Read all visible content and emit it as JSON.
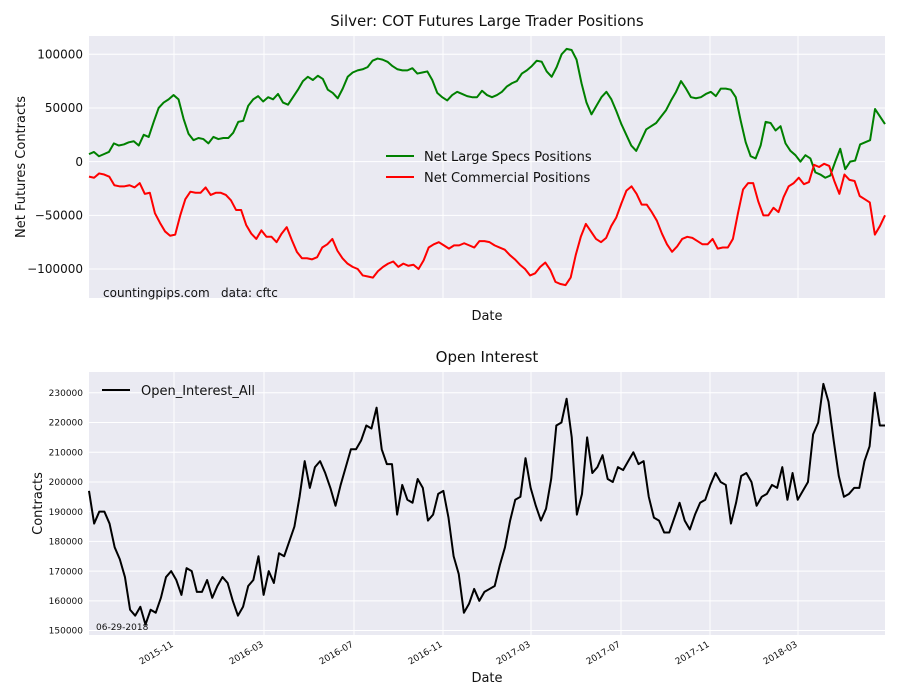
{
  "chart_data": [
    {
      "type": "line",
      "title": "Silver: COT Futures Large Trader Positions",
      "xlabel": "Date",
      "ylabel": "Net Futures Contracts",
      "ylim": [
        -127000,
        117000
      ],
      "yticks": [
        100000,
        50000,
        0,
        -50000,
        -100000
      ],
      "ytick_labels": [
        "100000",
        "50000",
        "0",
        "−50000",
        "−100000"
      ],
      "grid": true,
      "legend": "center",
      "annotations": [
        "countingpips.com",
        "data: cftc"
      ],
      "series": [
        {
          "name": "Net Large Specs Positions",
          "color": "#008000",
          "values": [
            7000,
            9000,
            5000,
            7000,
            9000,
            17000,
            15000,
            16000,
            18000,
            19000,
            15000,
            25000,
            23000,
            37000,
            50000,
            55000,
            58000,
            62000,
            58000,
            40000,
            26000,
            20000,
            22000,
            21000,
            17000,
            23000,
            21000,
            22000,
            22000,
            27000,
            37000,
            38000,
            52000,
            58000,
            61000,
            56000,
            60000,
            58000,
            63000,
            55000,
            53000,
            60000,
            67000,
            75000,
            79000,
            76000,
            80000,
            77000,
            67000,
            64000,
            59000,
            68000,
            79000,
            83000,
            85000,
            86000,
            88000,
            94000,
            96000,
            95000,
            93000,
            89000,
            86000,
            85000,
            85000,
            87000,
            82000,
            83000,
            84000,
            76000,
            64000,
            60000,
            57000,
            62000,
            65000,
            63000,
            61000,
            60000,
            60000,
            66000,
            62000,
            60000,
            62000,
            65000,
            70000,
            73000,
            75000,
            82000,
            85000,
            89000,
            94000,
            93000,
            84000,
            79000,
            88000,
            100000,
            105000,
            104000,
            95000,
            73000,
            55000,
            44000,
            52000,
            60000,
            65000,
            58000,
            47000,
            35000,
            25000,
            15000,
            10000,
            20000,
            30000,
            33000,
            36000,
            42000,
            48000,
            57000,
            65000,
            75000,
            68000,
            60000,
            59000,
            60000,
            63000,
            65000,
            61000,
            68000,
            68000,
            67000,
            60000,
            38000,
            18000,
            5000,
            3000,
            15000,
            37000,
            36000,
            29000,
            33000,
            17000,
            10000,
            6000,
            0,
            6000,
            3000,
            -10000,
            -12000,
            -15000,
            -13000,
            0,
            12000,
            -7000,
            0,
            1000,
            16000,
            18000,
            20000,
            49000,
            42000,
            35000
          ]
        },
        {
          "name": "Net Commercial Positions",
          "color": "#ff0000",
          "values": [
            -14000,
            -15000,
            -11000,
            -12000,
            -14000,
            -22000,
            -23000,
            -23000,
            -22000,
            -24000,
            -20000,
            -30000,
            -29000,
            -48000,
            -57000,
            -65000,
            -69000,
            -68000,
            -50000,
            -35000,
            -28000,
            -29000,
            -29000,
            -24000,
            -31000,
            -29000,
            -29000,
            -31000,
            -36000,
            -45000,
            -45000,
            -59000,
            -67000,
            -72000,
            -64000,
            -70000,
            -70000,
            -75000,
            -67000,
            -61000,
            -73000,
            -84000,
            -90000,
            -90000,
            -91000,
            -89000,
            -80000,
            -77000,
            -72000,
            -83000,
            -90000,
            -95000,
            -98000,
            -100000,
            -106000,
            -107000,
            -108000,
            -102000,
            -98000,
            -95000,
            -93000,
            -98000,
            -95000,
            -97000,
            -96000,
            -100000,
            -92000,
            -80000,
            -77000,
            -75000,
            -78000,
            -81000,
            -78000,
            -78000,
            -76000,
            -78000,
            -80000,
            -74000,
            -74000,
            -75000,
            -78000,
            -80000,
            -82000,
            -87000,
            -91000,
            -96000,
            -100000,
            -106000,
            -104000,
            -98000,
            -94000,
            -101000,
            -112000,
            -114000,
            -115000,
            -108000,
            -87000,
            -70000,
            -58000,
            -65000,
            -72000,
            -75000,
            -71000,
            -60000,
            -52000,
            -39000,
            -27000,
            -23000,
            -30000,
            -40000,
            -40000,
            -47000,
            -55000,
            -67000,
            -77000,
            -84000,
            -79000,
            -72000,
            -70000,
            -71000,
            -74000,
            -77000,
            -77000,
            -72000,
            -81000,
            -80000,
            -80000,
            -72000,
            -48000,
            -26000,
            -20000,
            -20000,
            -37000,
            -50000,
            -50000,
            -43000,
            -47000,
            -33000,
            -23000,
            -20000,
            -15000,
            -21000,
            -19000,
            -3000,
            -5000,
            -2000,
            -4000,
            -18000,
            -30000,
            -12000,
            -17000,
            -18000,
            -32000,
            -35000,
            -38000,
            -68000,
            -60000,
            -50000
          ]
        }
      ]
    },
    {
      "type": "line",
      "title": "Open Interest",
      "xlabel": "Date",
      "ylabel": "Contracts",
      "ylim": [
        148500,
        237000
      ],
      "yticks": [
        150000,
        160000,
        170000,
        180000,
        190000,
        200000,
        210000,
        220000,
        230000
      ],
      "ytick_labels": [
        "150000",
        "160000",
        "170000",
        "180000",
        "190000",
        "200000",
        "210000",
        "220000",
        "230000"
      ],
      "grid": true,
      "legend": "top-left",
      "annotations": [
        "06-29-2018"
      ],
      "x_tick_labels": [
        "2015-11",
        "2016-03",
        "2016-07",
        "2016-11",
        "2017-03",
        "2017-07",
        "2017-11",
        "2018-03"
      ],
      "series": [
        {
          "name": "Open_Interest_All",
          "color": "#000000",
          "values": [
            197000,
            186000,
            190000,
            190000,
            186000,
            178000,
            174000,
            168000,
            157000,
            155000,
            158000,
            152000,
            157000,
            156000,
            161000,
            168000,
            170000,
            167000,
            162000,
            171000,
            170000,
            163000,
            163000,
            167000,
            161000,
            165000,
            168000,
            166000,
            160000,
            155000,
            158000,
            165000,
            167000,
            175000,
            162000,
            170000,
            166000,
            176000,
            175000,
            180000,
            185000,
            195000,
            207000,
            198000,
            205000,
            207000,
            203000,
            198000,
            192000,
            199000,
            205000,
            211000,
            211000,
            214000,
            219000,
            218000,
            225000,
            211000,
            206000,
            206000,
            189000,
            199000,
            194000,
            193000,
            201000,
            198000,
            187000,
            189000,
            196000,
            197000,
            188000,
            175000,
            169000,
            156000,
            159000,
            164000,
            160000,
            163000,
            164000,
            165000,
            172000,
            178000,
            187000,
            194000,
            195000,
            208000,
            198000,
            192000,
            187000,
            191000,
            201000,
            219000,
            220000,
            228000,
            215000,
            189000,
            196000,
            215000,
            203000,
            205000,
            209000,
            201000,
            200000,
            205000,
            204000,
            207000,
            210000,
            206000,
            207000,
            195000,
            188000,
            187000,
            183000,
            183000,
            188000,
            193000,
            187000,
            184000,
            189000,
            193000,
            194000,
            199000,
            203000,
            200000,
            199000,
            186000,
            193000,
            202000,
            203000,
            200000,
            192000,
            195000,
            196000,
            199000,
            198000,
            205000,
            194000,
            203000,
            194000,
            197000,
            200000,
            216000,
            220000,
            233000,
            227000,
            214000,
            202000,
            195000,
            196000,
            198000,
            198000,
            207000,
            212000,
            230000,
            219000,
            219000
          ]
        }
      ]
    }
  ]
}
